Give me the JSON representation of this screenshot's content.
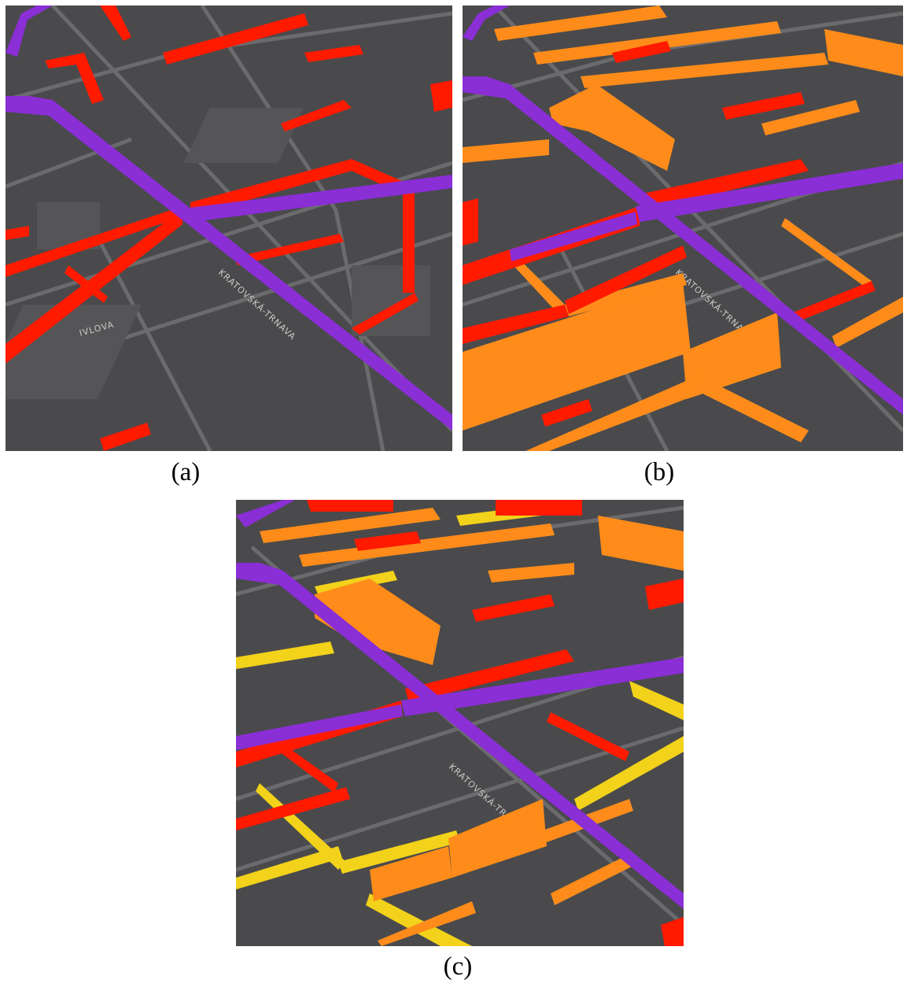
{
  "captions": {
    "a": "(a)",
    "b": "(b)",
    "c": "(c)"
  },
  "street_labels": {
    "main_diagonal": "KRATOVSKÁ-TRNAVA",
    "left_street": "IVLOVA"
  },
  "colors": {
    "background": "#4a4a4c",
    "road": "#6b6b6d",
    "block": "#555557",
    "purple_route": "#8a2ed6",
    "red_segment": "#ff1a00",
    "orange_segment": "#ff8c1a",
    "yellow_segment": "#f2d21a"
  },
  "panels": [
    {
      "id": "a",
      "caption": "(a)",
      "colored_layers": [
        "purple_route",
        "red_segment"
      ]
    },
    {
      "id": "b",
      "caption": "(b)",
      "colored_layers": [
        "purple_route",
        "red_segment",
        "orange_segment"
      ]
    },
    {
      "id": "c",
      "caption": "(c)",
      "colored_layers": [
        "purple_route",
        "red_segment",
        "orange_segment",
        "yellow_segment"
      ]
    }
  ]
}
